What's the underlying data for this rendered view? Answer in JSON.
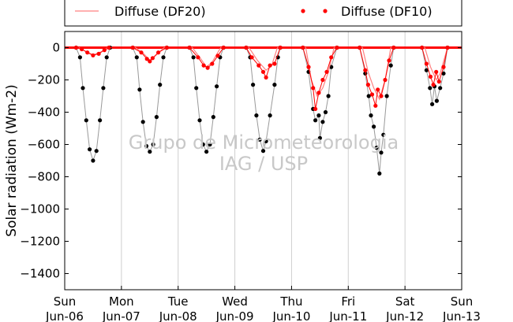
{
  "chart_data": {
    "type": "scatter",
    "title": "",
    "ylabel": "Solar radiation (Wm-2)",
    "xlabel": "",
    "ylim": [
      -1500,
      100
    ],
    "xlim": [
      0,
      7
    ],
    "grid": "vertical",
    "legend_placement": "top",
    "yticks": [
      0,
      -200,
      -400,
      -600,
      -800,
      -1000,
      -1200,
      -1400
    ],
    "xticks": [
      {
        "day": 0,
        "weekday": "Sun",
        "date": "Jun-06"
      },
      {
        "day": 1,
        "weekday": "Mon",
        "date": "Jun-07"
      },
      {
        "day": 2,
        "weekday": "Tue",
        "date": "Jun-08"
      },
      {
        "day": 3,
        "weekday": "Wed",
        "date": "Jun-09"
      },
      {
        "day": 4,
        "weekday": "Thu",
        "date": "Jun-10"
      },
      {
        "day": 5,
        "weekday": "Fri",
        "date": "Jun-11"
      },
      {
        "day": 6,
        "weekday": "Sat",
        "date": "Jun-12"
      },
      {
        "day": 7,
        "weekday": "Sun",
        "date": "Jun-13"
      }
    ],
    "watermark": [
      "Grupo de Micrometeorologia",
      "IAG / USP"
    ],
    "series": [
      {
        "name": "Diffuse (DF20)",
        "color": "#ff8080",
        "style": "line",
        "points": [
          [
            0.25,
            0
          ],
          [
            0.35,
            -20
          ],
          [
            0.5,
            -45
          ],
          [
            0.65,
            -25
          ],
          [
            0.75,
            0
          ],
          [
            1.25,
            0
          ],
          [
            1.4,
            -40
          ],
          [
            1.5,
            -80
          ],
          [
            1.6,
            -50
          ],
          [
            1.75,
            0
          ],
          [
            2.25,
            0
          ],
          [
            2.4,
            -70
          ],
          [
            2.5,
            -120
          ],
          [
            2.6,
            -90
          ],
          [
            2.75,
            0
          ],
          [
            3.25,
            0
          ],
          [
            3.4,
            -80
          ],
          [
            3.55,
            -140
          ],
          [
            3.65,
            -110
          ],
          [
            3.75,
            0
          ],
          [
            4.25,
            0
          ],
          [
            4.35,
            -200
          ],
          [
            4.45,
            -300
          ],
          [
            4.55,
            -250
          ],
          [
            4.65,
            -150
          ],
          [
            4.75,
            0
          ],
          [
            5.25,
            0
          ],
          [
            5.35,
            -150
          ],
          [
            5.45,
            -250
          ],
          [
            5.55,
            -320
          ],
          [
            5.65,
            -200
          ],
          [
            5.75,
            0
          ],
          [
            6.35,
            0
          ],
          [
            6.45,
            -120
          ],
          [
            6.55,
            -200
          ],
          [
            6.62,
            -160
          ],
          [
            6.75,
            0
          ]
        ]
      },
      {
        "name": "Diffuse (DF10)",
        "color": "#ff0000",
        "style": "dots",
        "points": [
          [
            0.2,
            0
          ],
          [
            0.3,
            -10
          ],
          [
            0.4,
            -30
          ],
          [
            0.5,
            -48
          ],
          [
            0.6,
            -38
          ],
          [
            0.7,
            -15
          ],
          [
            0.78,
            0
          ],
          [
            1.2,
            0
          ],
          [
            1.35,
            -30
          ],
          [
            1.45,
            -70
          ],
          [
            1.5,
            -85
          ],
          [
            1.55,
            -65
          ],
          [
            1.65,
            -30
          ],
          [
            1.8,
            0
          ],
          [
            2.2,
            0
          ],
          [
            2.35,
            -60
          ],
          [
            2.45,
            -110
          ],
          [
            2.52,
            -125
          ],
          [
            2.6,
            -100
          ],
          [
            2.7,
            -50
          ],
          [
            2.8,
            0
          ],
          [
            3.2,
            0
          ],
          [
            3.3,
            -60
          ],
          [
            3.42,
            -110
          ],
          [
            3.5,
            -150
          ],
          [
            3.55,
            -185
          ],
          [
            3.62,
            -110
          ],
          [
            3.7,
            -100
          ],
          [
            3.8,
            0
          ],
          [
            4.2,
            0
          ],
          [
            4.3,
            -120
          ],
          [
            4.38,
            -250
          ],
          [
            4.42,
            -380
          ],
          [
            4.48,
            -280
          ],
          [
            4.55,
            -200
          ],
          [
            4.62,
            -150
          ],
          [
            4.7,
            -60
          ],
          [
            4.8,
            0
          ],
          [
            5.2,
            0
          ],
          [
            5.3,
            -140
          ],
          [
            5.35,
            -230
          ],
          [
            5.42,
            -290
          ],
          [
            5.48,
            -360
          ],
          [
            5.52,
            -260
          ],
          [
            5.58,
            -300
          ],
          [
            5.65,
            -200
          ],
          [
            5.72,
            -80
          ],
          [
            5.8,
            0
          ],
          [
            6.3,
            0
          ],
          [
            6.38,
            -100
          ],
          [
            6.45,
            -180
          ],
          [
            6.5,
            -230
          ],
          [
            6.55,
            -150
          ],
          [
            6.6,
            -210
          ],
          [
            6.68,
            -120
          ],
          [
            6.75,
            0
          ]
        ]
      },
      {
        "name": "",
        "color": "#000000",
        "style": "dots",
        "points": [
          [
            0.2,
            0
          ],
          [
            0.27,
            -60
          ],
          [
            0.32,
            -250
          ],
          [
            0.38,
            -450
          ],
          [
            0.44,
            -630
          ],
          [
            0.5,
            -700
          ],
          [
            0.56,
            -640
          ],
          [
            0.62,
            -450
          ],
          [
            0.68,
            -250
          ],
          [
            0.74,
            -60
          ],
          [
            0.8,
            0
          ],
          [
            1.2,
            0
          ],
          [
            1.27,
            -60
          ],
          [
            1.32,
            -260
          ],
          [
            1.38,
            -460
          ],
          [
            1.44,
            -610
          ],
          [
            1.5,
            -645
          ],
          [
            1.56,
            -600
          ],
          [
            1.62,
            -430
          ],
          [
            1.68,
            -230
          ],
          [
            1.74,
            -60
          ],
          [
            1.8,
            0
          ],
          [
            2.2,
            0
          ],
          [
            2.27,
            -60
          ],
          [
            2.32,
            -250
          ],
          [
            2.38,
            -450
          ],
          [
            2.44,
            -600
          ],
          [
            2.5,
            -645
          ],
          [
            2.56,
            -600
          ],
          [
            2.62,
            -430
          ],
          [
            2.68,
            -240
          ],
          [
            2.74,
            -60
          ],
          [
            2.8,
            0
          ],
          [
            3.2,
            0
          ],
          [
            3.27,
            -60
          ],
          [
            3.32,
            -230
          ],
          [
            3.38,
            -420
          ],
          [
            3.44,
            -570
          ],
          [
            3.5,
            -640
          ],
          [
            3.55,
            -580
          ],
          [
            3.62,
            -420
          ],
          [
            3.7,
            -230
          ],
          [
            3.76,
            -60
          ],
          [
            3.8,
            0
          ],
          [
            4.2,
            0
          ],
          [
            4.3,
            -150
          ],
          [
            4.38,
            -380
          ],
          [
            4.42,
            -450
          ],
          [
            4.48,
            -420
          ],
          [
            4.5,
            -560
          ],
          [
            4.55,
            -460
          ],
          [
            4.6,
            -400
          ],
          [
            4.65,
            -300
          ],
          [
            4.7,
            -120
          ],
          [
            4.8,
            0
          ],
          [
            5.2,
            0
          ],
          [
            5.3,
            -160
          ],
          [
            5.36,
            -300
          ],
          [
            5.4,
            -420
          ],
          [
            5.45,
            -490
          ],
          [
            5.5,
            -620
          ],
          [
            5.55,
            -780
          ],
          [
            5.58,
            -650
          ],
          [
            5.62,
            -540
          ],
          [
            5.68,
            -300
          ],
          [
            5.75,
            -110
          ],
          [
            5.8,
            0
          ],
          [
            6.3,
            0
          ],
          [
            6.38,
            -140
          ],
          [
            6.44,
            -250
          ],
          [
            6.48,
            -350
          ],
          [
            6.52,
            -240
          ],
          [
            6.56,
            -330
          ],
          [
            6.62,
            -250
          ],
          [
            6.68,
            -160
          ],
          [
            6.75,
            0
          ]
        ]
      }
    ]
  }
}
